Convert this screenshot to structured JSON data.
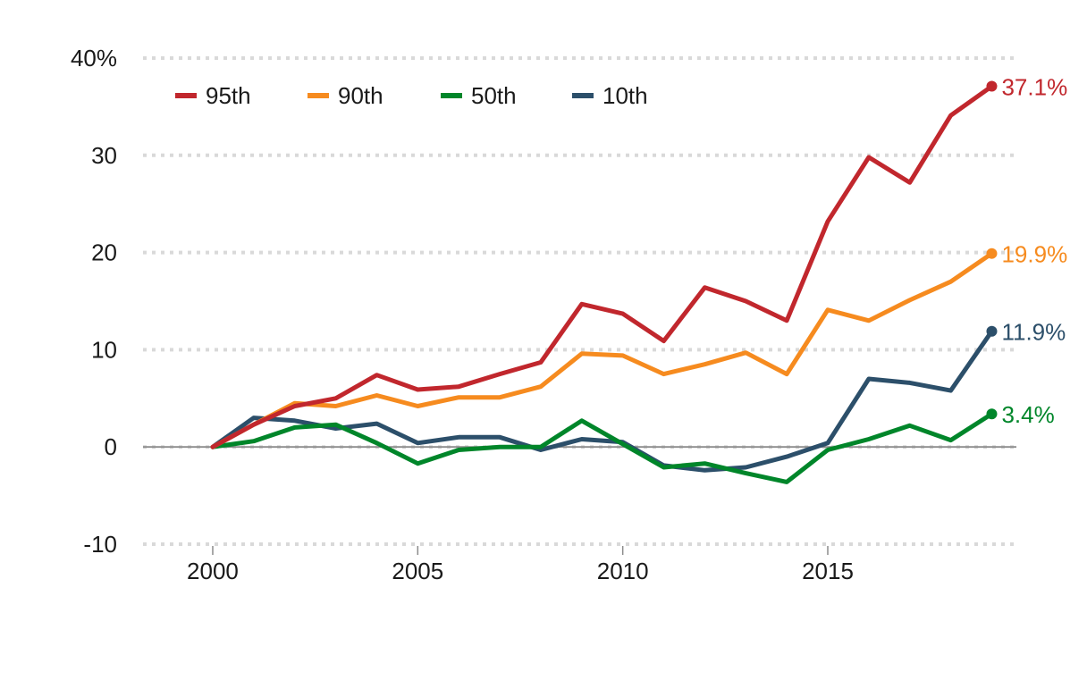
{
  "chart_data": {
    "type": "line",
    "title": "",
    "xlabel": "",
    "ylabel": "",
    "x": [
      2000,
      2001,
      2002,
      2003,
      2004,
      2005,
      2006,
      2007,
      2008,
      2009,
      2010,
      2011,
      2012,
      2013,
      2014,
      2015,
      2016,
      2017,
      2018,
      2019
    ],
    "xlim": [
      1998.3,
      2019.6
    ],
    "ylim": [
      -10,
      40
    ],
    "x_ticks": [
      2000,
      2005,
      2010,
      2015
    ],
    "x_tick_labels": [
      "2000",
      "2005",
      "2010",
      "2015"
    ],
    "y_ticks": [
      -10,
      0,
      10,
      20,
      30,
      40
    ],
    "y_tick_labels": [
      "-10",
      "0",
      "10",
      "20",
      "30",
      "40%"
    ],
    "grid": true,
    "zero_line": true,
    "legend_position": "top-left",
    "series": [
      {
        "name": "95th",
        "color": "#c1272d",
        "values": [
          0.0,
          2.3,
          4.2,
          5.0,
          7.4,
          5.9,
          6.2,
          7.5,
          8.7,
          14.7,
          13.7,
          10.9,
          16.4,
          15.0,
          13.0,
          23.2,
          29.8,
          27.2,
          34.1,
          37.1
        ],
        "end_label": "37.1%"
      },
      {
        "name": "90th",
        "color": "#f68b1f",
        "values": [
          0.0,
          2.3,
          4.5,
          4.2,
          5.3,
          4.2,
          5.1,
          5.1,
          6.2,
          9.6,
          9.4,
          7.5,
          8.5,
          9.7,
          7.5,
          14.1,
          13.0,
          15.1,
          17.0,
          19.9
        ],
        "end_label": "19.9%"
      },
      {
        "name": "50th",
        "color": "#00862a",
        "values": [
          0.0,
          0.6,
          2.0,
          2.3,
          0.4,
          -1.7,
          -0.3,
          0.0,
          0.0,
          2.7,
          0.3,
          -2.1,
          -1.7,
          -2.7,
          -3.6,
          -0.3,
          0.8,
          2.2,
          0.7,
          3.4
        ],
        "end_label": "3.4%"
      },
      {
        "name": "10th",
        "color": "#2c4f6a",
        "values": [
          0.0,
          3.0,
          2.7,
          1.9,
          2.4,
          0.4,
          1.0,
          1.0,
          -0.3,
          0.8,
          0.5,
          -1.9,
          -2.4,
          -2.1,
          -1.0,
          0.4,
          7.0,
          6.6,
          5.8,
          11.9
        ],
        "end_label": "11.9%"
      }
    ]
  }
}
